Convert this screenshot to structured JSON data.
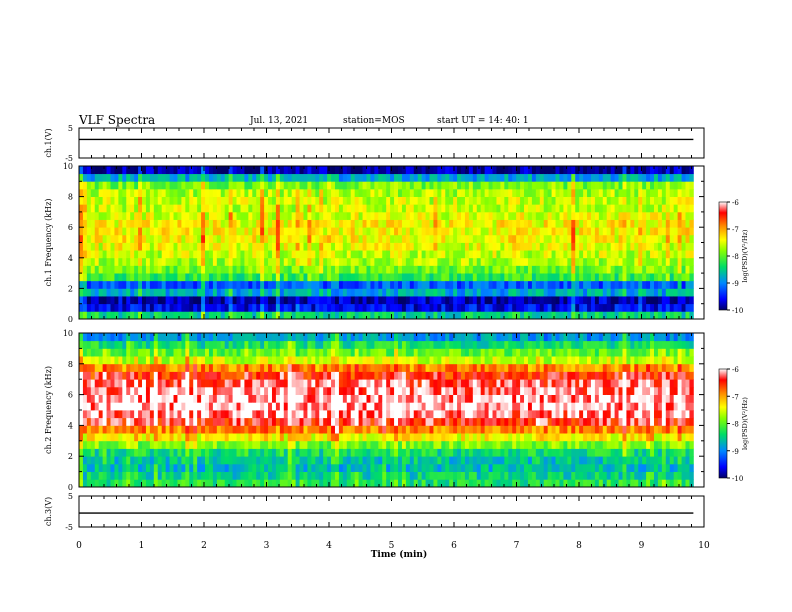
{
  "header": {
    "title": "VLF Spectra",
    "date": "Jul. 13, 2021",
    "station": "station=MOS",
    "start": "start UT =  14: 40: 1"
  },
  "colors": {
    "spectrogram_scale": [
      "#000066",
      "#0000ff",
      "#0088ff",
      "#00dd66",
      "#88ff00",
      "#ffff00",
      "#ff8800",
      "#ff0000",
      "#ffffff"
    ]
  },
  "chart_data": [
    {
      "type": "line",
      "panel": "ch1-waveform",
      "ylabel": "ch.1(V)",
      "ylim": [
        -5,
        5
      ],
      "yticks": [
        "5",
        "-5"
      ],
      "series": [
        {
          "values": [
            1.2,
            1.2,
            1.2,
            1.2,
            1.2,
            1.2,
            1.2,
            1.2,
            1.2,
            1.2,
            1.2
          ]
        }
      ],
      "x": [
        0,
        1,
        2,
        3,
        4,
        5,
        6,
        7,
        8,
        9,
        9.83
      ]
    },
    {
      "type": "heatmap",
      "panel": "ch1-spectrogram",
      "ylabel": "ch.1 Frequency (kHz)",
      "ylim": [
        0,
        10
      ],
      "yticks": [
        "0",
        "2",
        "4",
        "6",
        "8",
        "10"
      ],
      "xlim": [
        0,
        10
      ],
      "colorbar": {
        "label": "log(PSD)(V²/Hz)",
        "ticks": [
          "-6",
          "-7",
          "-8",
          "-9",
          "-10"
        ],
        "range": [
          -10,
          -6
        ]
      },
      "freq_profile_khz": [
        0.25,
        0.75,
        1.25,
        1.75,
        2.25,
        2.75,
        3.25,
        3.75,
        4.25,
        4.75,
        5.25,
        5.75,
        6.25,
        6.75,
        7.25,
        7.75,
        8.25,
        8.75,
        9.25,
        9.75
      ],
      "mean_log_psd": [
        -8.5,
        -9.6,
        -9.8,
        -8.8,
        -9.2,
        -8.2,
        -7.9,
        -7.7,
        -7.6,
        -7.5,
        -7.4,
        -7.4,
        -7.4,
        -7.5,
        -7.6,
        -7.6,
        -7.7,
        -7.9,
        -8.8,
        -9.9
      ]
    },
    {
      "type": "heatmap",
      "panel": "ch2-spectrogram",
      "ylabel": "ch.2 Frequency (kHz)",
      "ylim": [
        0,
        10
      ],
      "yticks": [
        "0",
        "2",
        "4",
        "6",
        "8",
        "10"
      ],
      "xlim": [
        0,
        10
      ],
      "colorbar": {
        "label": "log(PSD)(V²/Hz)",
        "ticks": [
          "-6",
          "-7",
          "-8",
          "-9",
          "-10"
        ],
        "range": [
          -10,
          -6
        ]
      },
      "freq_profile_khz": [
        0.25,
        0.75,
        1.25,
        1.75,
        2.25,
        2.75,
        3.25,
        3.75,
        4.25,
        4.75,
        5.25,
        5.75,
        6.25,
        6.75,
        7.25,
        7.75,
        8.25,
        8.75,
        9.25,
        9.75
      ],
      "mean_log_psd": [
        -8.3,
        -8.5,
        -8.7,
        -8.6,
        -8.4,
        -7.9,
        -7.4,
        -6.9,
        -6.4,
        -6.2,
        -6.1,
        -6.1,
        -6.2,
        -6.3,
        -6.5,
        -6.9,
        -7.6,
        -8.0,
        -8.4,
        -8.9
      ]
    },
    {
      "type": "line",
      "panel": "ch3-waveform",
      "ylabel": "ch.3(V)",
      "ylim": [
        -5,
        5
      ],
      "yticks": [
        "5",
        "-5"
      ],
      "series": [
        {
          "values": [
            -0.5,
            -0.5,
            -0.5,
            -0.5,
            -0.5,
            -0.5,
            -0.5,
            -0.5,
            -0.5,
            -0.5,
            -0.5
          ]
        }
      ],
      "x": [
        0,
        1,
        2,
        3,
        4,
        5,
        6,
        7,
        8,
        9,
        9.83
      ]
    }
  ],
  "xaxis": {
    "label": "Time (min)",
    "ticks": [
      "0",
      "1",
      "2",
      "3",
      "4",
      "5",
      "6",
      "7",
      "8",
      "9",
      "10"
    ],
    "xlim": [
      0,
      10
    ],
    "data_end": 9.83
  }
}
